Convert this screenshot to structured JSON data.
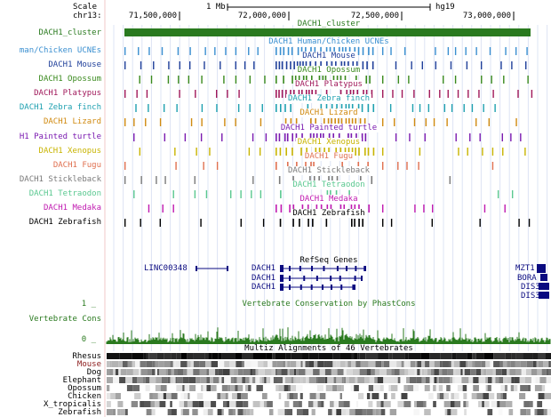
{
  "header": {
    "scale_label": "Scale",
    "chrom_label": "chr13:",
    "scale_bar": "1 Mb",
    "assembly": "hg19",
    "ticks": [
      "71,500,000",
      "72,000,000",
      "72,500,000",
      "73,000,000"
    ]
  },
  "cluster": {
    "label": "DACH1_cluster",
    "center": "DACH1_cluster",
    "color": "#2a7a1f"
  },
  "tracks": [
    {
      "label": "man/Chicken UCNEs",
      "center": "DACH1 Human/Chicken UCNEs",
      "color": "#3a8fd0"
    },
    {
      "label": "DACH1 Mouse",
      "center": "DACH1 Mouse",
      "color": "#1f3f9a"
    },
    {
      "label": "DACH1 Opossum",
      "center": "DACH1 Opossum",
      "color": "#3a8a1e"
    },
    {
      "label": "DACH1 Platypus",
      "center": "DACH1 Platypus",
      "color": "#a0185a"
    },
    {
      "label": "DACH1 Zebra finch",
      "center": "DACH1 Zebra finch",
      "color": "#1ea0b0"
    },
    {
      "label": "DACH1 Lizard",
      "center": "DACH1 Lizard",
      "color": "#d08a10"
    },
    {
      "label": "H1 Painted turtle",
      "center": "DACH1 Painted turtle",
      "color": "#7a1ab0"
    },
    {
      "label": "DACH1 Xenopus",
      "center": "DACH1 Xenopus",
      "color": "#c8b400"
    },
    {
      "label": "DACH1 Fugu",
      "center": "DACH1 Fugu",
      "color": "#e07050"
    },
    {
      "label": "DACH1 Stickleback",
      "center": "DACH1 Stickleback",
      "color": "#7a7a7a"
    },
    {
      "label": "DACH1 Tetraodon",
      "center": "DACH1 Tetraodon",
      "color": "#5ac890"
    },
    {
      "label": "DACH1 Medaka",
      "center": "DACH1 Medaka",
      "color": "#c01ab0"
    },
    {
      "label": "DACH1 Zebrafish",
      "center": "DACH1 Zebrafish",
      "color": "#000000"
    }
  ],
  "refseq": {
    "title": "RefSeq Genes",
    "genes": [
      "LINC00348",
      "DACH1",
      "DACH1",
      "DACH1",
      "MZT1",
      "BORA",
      "DIS3",
      "DIS3"
    ]
  },
  "conservation": {
    "label": "Vertebrate Cons",
    "title": "Vertebrate Conservation by PhastCons",
    "top": "1 _",
    "bottom": "0 _",
    "color": "#2a7a1f"
  },
  "multiz": {
    "title": "Multiz Alignments of 46 Vertebrates",
    "species": [
      "Rhesus",
      "Mouse",
      "Dog",
      "Elephant",
      "Opossum",
      "Chicken",
      "X_tropicalis",
      "Zebrafish"
    ],
    "colors": [
      "#000000",
      "#8a1a1a",
      "#000000",
      "#000000",
      "#000000",
      "#000000",
      "#000000",
      "#000000"
    ]
  }
}
